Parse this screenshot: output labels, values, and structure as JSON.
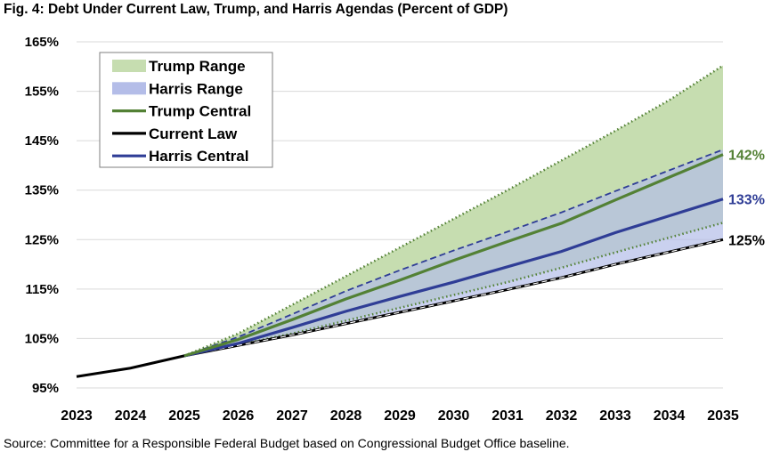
{
  "title": "Fig. 4: Debt Under Current Law, Trump, and Harris Agendas (Percent of GDP)",
  "source": "Source: Committee for a Responsible Federal Budget based on Congressional Budget Office baseline.",
  "chart_data": {
    "type": "line",
    "title": "Fig. 4: Debt Under Current Law, Trump, and Harris Agendas (Percent of GDP)",
    "xlabel": "",
    "ylabel": "",
    "x": [
      2023,
      2024,
      2025,
      2026,
      2027,
      2028,
      2029,
      2030,
      2031,
      2032,
      2033,
      2034,
      2035
    ],
    "xlim": [
      2023,
      2035
    ],
    "ylim": [
      95,
      165
    ],
    "y_ticks": [
      95,
      105,
      115,
      125,
      135,
      145,
      155,
      165
    ],
    "y_tick_labels": [
      "95%",
      "105%",
      "115%",
      "125%",
      "135%",
      "145%",
      "155%",
      "165%"
    ],
    "x_tick_labels": [
      "2023",
      "2024",
      "2025",
      "2026",
      "2027",
      "2028",
      "2029",
      "2030",
      "2031",
      "2032",
      "2033",
      "2034",
      "2035"
    ],
    "grid": "horizontal",
    "legend_position": "top-left",
    "colors": {
      "trump": "#538135",
      "trump_fill": "#c6ddb0",
      "harris": "#2f3d96",
      "harris_fill": "#b4bde8",
      "current": "#000000"
    },
    "series": [
      {
        "name": "Current Law",
        "x": [
          2023,
          2024,
          2025,
          2026,
          2027,
          2028,
          2029,
          2030,
          2031,
          2032,
          2033,
          2034,
          2035
        ],
        "values": [
          97.3,
          99.0,
          101.5,
          103.6,
          105.7,
          108.0,
          110.3,
          112.6,
          114.9,
          117.3,
          120.0,
          122.5,
          125.0
        ]
      },
      {
        "name": "Trump Central",
        "x": [
          2025,
          2026,
          2027,
          2028,
          2029,
          2030,
          2031,
          2032,
          2033,
          2034,
          2035
        ],
        "values": [
          101.5,
          104.8,
          108.8,
          113.0,
          116.8,
          120.8,
          124.6,
          128.3,
          133.0,
          137.6,
          142.2
        ]
      },
      {
        "name": "Harris Central",
        "x": [
          2025,
          2026,
          2027,
          2028,
          2029,
          2030,
          2031,
          2032,
          2033,
          2034,
          2035
        ],
        "values": [
          101.5,
          104.0,
          107.2,
          110.5,
          113.5,
          116.4,
          119.5,
          122.6,
          126.4,
          129.8,
          133.2
        ]
      },
      {
        "name": "Trump Range",
        "x": [
          2025,
          2026,
          2027,
          2028,
          2029,
          2030,
          2031,
          2032,
          2033,
          2034,
          2035
        ],
        "low": [
          101.5,
          103.7,
          106.0,
          108.6,
          111.2,
          113.8,
          116.4,
          119.3,
          122.4,
          125.4,
          128.4
        ],
        "high": [
          101.5,
          106.0,
          111.8,
          117.6,
          123.4,
          129.2,
          135.0,
          141.0,
          147.0,
          153.2,
          160.2
        ]
      },
      {
        "name": "Harris Range",
        "x": [
          2025,
          2026,
          2027,
          2028,
          2029,
          2030,
          2031,
          2032,
          2033,
          2034,
          2035
        ],
        "low": [
          101.5,
          103.6,
          105.7,
          108.0,
          110.3,
          112.6,
          114.9,
          117.3,
          120.0,
          122.5,
          125.0
        ],
        "high": [
          101.5,
          105.3,
          109.9,
          114.6,
          118.8,
          122.8,
          126.6,
          130.5,
          134.8,
          139.0,
          143.2
        ]
      }
    ],
    "end_labels": [
      {
        "series": "Trump Central",
        "text": "142%"
      },
      {
        "series": "Harris Central",
        "text": "133%"
      },
      {
        "series": "Current Law",
        "text": "125%"
      }
    ],
    "legend": [
      "Trump Range",
      "Harris Range",
      "Trump Central",
      "Current Law",
      "Harris Central"
    ]
  }
}
